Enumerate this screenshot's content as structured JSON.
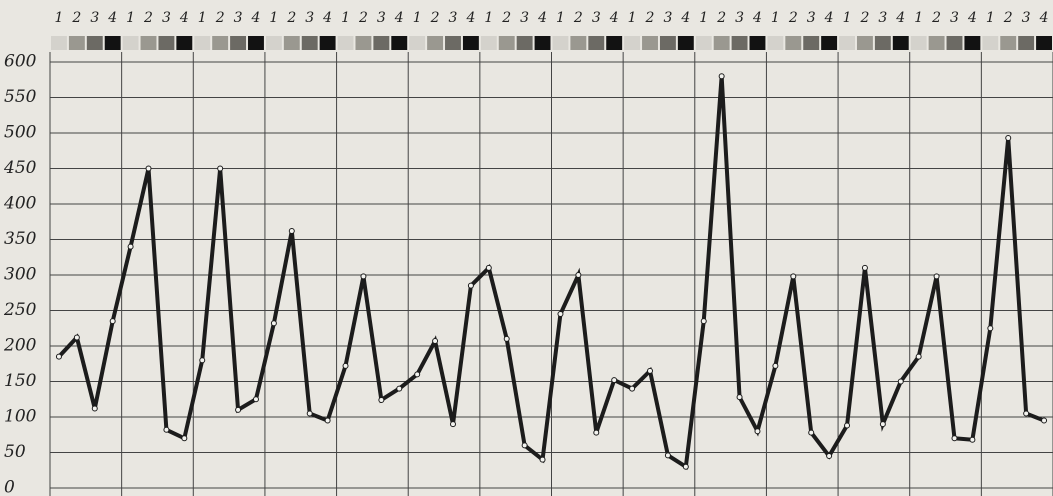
{
  "chart_data": {
    "type": "line",
    "categories": [
      "1",
      "2",
      "3",
      "4",
      "1",
      "2",
      "3",
      "4",
      "1",
      "2",
      "3",
      "4",
      "1",
      "2",
      "3",
      "4",
      "1",
      "2",
      "3",
      "4",
      "1",
      "2",
      "3",
      "4",
      "1",
      "2",
      "3",
      "4",
      "1",
      "2",
      "3",
      "4",
      "1",
      "2",
      "3",
      "4",
      "1",
      "2",
      "3",
      "4",
      "1",
      "2",
      "3",
      "4",
      "1",
      "2",
      "3",
      "4",
      "1",
      "2",
      "3",
      "4",
      "1",
      "2",
      "3",
      "4"
    ],
    "values": [
      185,
      212,
      112,
      235,
      340,
      450,
      82,
      70,
      180,
      450,
      110,
      125,
      232,
      362,
      105,
      95,
      172,
      298,
      124,
      140,
      160,
      207,
      90,
      285,
      310,
      210,
      60,
      40,
      245,
      300,
      78,
      152,
      140,
      165,
      46,
      30,
      235,
      580,
      128,
      80,
      172,
      298,
      78,
      45,
      88,
      310,
      90,
      150,
      185,
      298,
      70,
      68,
      225,
      493,
      105,
      95
    ],
    "color": "#1c1c1c",
    "ylim": [
      0,
      600
    ],
    "yticks": [
      0,
      50,
      100,
      150,
      200,
      250,
      300,
      350,
      400,
      450,
      500,
      550,
      600
    ],
    "grid": true
  }
}
